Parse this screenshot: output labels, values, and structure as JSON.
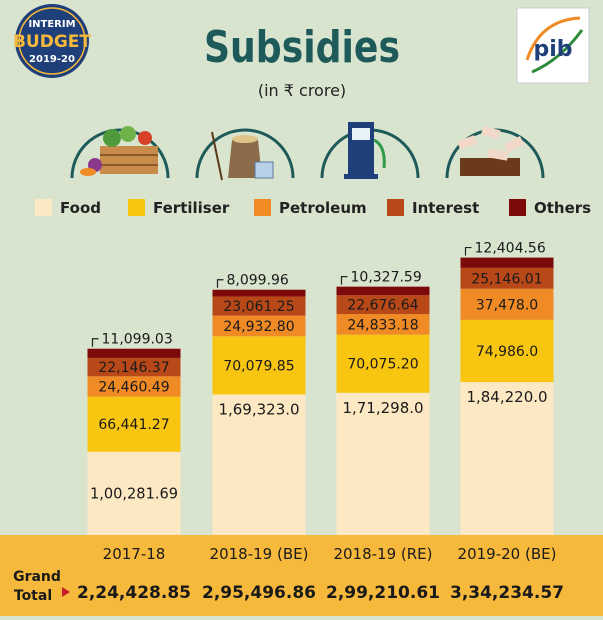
{
  "badge": {
    "line1": "INTERIM",
    "line2": "BUDGET",
    "line3": "2019-20"
  },
  "title": "Subsidies",
  "unit": "(in ₹ crore)",
  "logo": {
    "text": "pib"
  },
  "icons": [
    "food-basket-icon",
    "fertiliser-bag-icon",
    "fuel-pump-icon",
    "money-icon"
  ],
  "colors": {
    "Food": "#fce9c4",
    "Fertiliser": "#f8c611",
    "Petroleum": "#f08a24",
    "Interest": "#b84818",
    "Others": "#7c0a0a",
    "background": "#d9e4cf",
    "footer": "#f6b93b",
    "title": "#1e5a5a"
  },
  "footer": {
    "grand_label_1": "Grand",
    "grand_label_2": "Total"
  },
  "chart_data": {
    "type": "bar",
    "stacked": true,
    "title": "Subsidies",
    "subtitle": "(in ₹ crore)",
    "legend_position": "top",
    "categories": [
      "2017-18",
      "2018-19 (BE)",
      "2018-19 (RE)",
      "2019-20 (BE)"
    ],
    "series": [
      {
        "name": "Food",
        "values": [
          100281.69,
          169323.0,
          171298.0,
          184220.0
        ],
        "labels": [
          "1,00,281.69",
          "1,69,323.0",
          "1,71,298.0",
          "1,84,220.0"
        ]
      },
      {
        "name": "Fertiliser",
        "values": [
          66441.27,
          70079.85,
          70075.2,
          74986.0
        ],
        "labels": [
          "66,441.27",
          "70,079.85",
          "70,075.20",
          "74,986.0"
        ]
      },
      {
        "name": "Petroleum",
        "values": [
          24460.49,
          24932.8,
          24833.18,
          37478.0
        ],
        "labels": [
          "24,460.49",
          "24,932.80",
          "24,833.18",
          "37,478.0"
        ]
      },
      {
        "name": "Interest",
        "values": [
          22146.37,
          23061.25,
          22676.64,
          25146.01
        ],
        "labels": [
          "22,146.37",
          "23,061.25",
          "22,676.64",
          "25,146.01"
        ]
      },
      {
        "name": "Others",
        "values": [
          11099.03,
          8099.96,
          10327.59,
          12404.56
        ],
        "labels": [
          "11,099.03",
          "8,099.96",
          "10,327.59",
          "12,404.56"
        ]
      }
    ],
    "totals": [
      224428.85,
      295496.86,
      299210.61,
      334234.57
    ],
    "total_labels": [
      "2,24,428.85",
      "2,95,496.86",
      "2,99,210.61",
      "3,34,234.57"
    ]
  }
}
